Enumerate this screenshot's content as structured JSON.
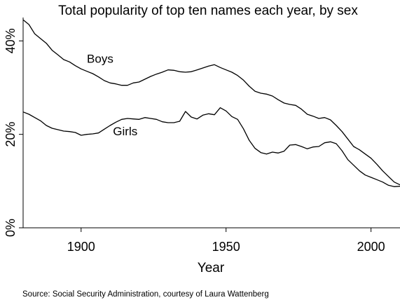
{
  "chart_data": {
    "type": "line",
    "title": "Total popularity of top ten names each year, by sex",
    "xlabel": "Year",
    "ylabel": "",
    "xlim": [
      1880,
      2010
    ],
    "ylim": [
      0,
      45
    ],
    "x_ticks": [
      1900,
      1950,
      2000
    ],
    "y_ticks": [
      0,
      20,
      40
    ],
    "y_tick_labels": [
      "0%",
      "20%",
      "40%"
    ],
    "grid": false,
    "legend": "none",
    "source": "Source:  Social Security Administration, courtesy of Laura Wattenberg",
    "series": [
      {
        "name": "Boys",
        "color": "#000000",
        "x": [
          1880,
          1882,
          1884,
          1886,
          1888,
          1890,
          1892,
          1894,
          1896,
          1898,
          1900,
          1902,
          1904,
          1906,
          1908,
          1910,
          1912,
          1914,
          1916,
          1918,
          1920,
          1922,
          1924,
          1926,
          1928,
          1930,
          1932,
          1934,
          1936,
          1938,
          1940,
          1942,
          1944,
          1946,
          1948,
          1950,
          1952,
          1954,
          1956,
          1958,
          1960,
          1962,
          1964,
          1966,
          1968,
          1970,
          1972,
          1974,
          1976,
          1978,
          1980,
          1982,
          1984,
          1986,
          1988,
          1990,
          1992,
          1994,
          1996,
          1998,
          2000,
          2002,
          2004,
          2006,
          2008,
          2010
        ],
        "values": [
          44.5,
          43.5,
          41.5,
          40.5,
          39.5,
          38.0,
          37.0,
          36.0,
          35.5,
          34.7,
          34.0,
          33.5,
          33.0,
          32.3,
          31.5,
          31.0,
          30.8,
          30.5,
          30.5,
          31.0,
          31.2,
          31.8,
          32.4,
          32.9,
          33.3,
          33.8,
          33.7,
          33.4,
          33.3,
          33.4,
          33.8,
          34.2,
          34.6,
          34.9,
          34.3,
          33.8,
          33.3,
          32.6,
          31.6,
          30.3,
          29.2,
          28.8,
          28.6,
          28.2,
          27.4,
          26.7,
          26.4,
          26.2,
          25.4,
          24.3,
          23.9,
          23.4,
          23.6,
          23.1,
          21.9,
          20.6,
          19.0,
          17.4,
          16.7,
          15.8,
          14.9,
          13.6,
          12.2,
          11.0,
          9.8,
          9.2
        ]
      },
      {
        "name": "Girls",
        "color": "#000000",
        "x": [
          1880,
          1882,
          1884,
          1886,
          1888,
          1890,
          1892,
          1894,
          1896,
          1898,
          1900,
          1902,
          1904,
          1906,
          1908,
          1910,
          1912,
          1914,
          1916,
          1918,
          1920,
          1922,
          1924,
          1926,
          1928,
          1930,
          1932,
          1934,
          1936,
          1938,
          1940,
          1942,
          1944,
          1946,
          1948,
          1950,
          1952,
          1954,
          1956,
          1958,
          1960,
          1962,
          1964,
          1966,
          1968,
          1970,
          1972,
          1974,
          1976,
          1978,
          1980,
          1982,
          1984,
          1986,
          1988,
          1990,
          1992,
          1994,
          1996,
          1998,
          2000,
          2002,
          2004,
          2006,
          2008,
          2010
        ],
        "values": [
          24.8,
          24.3,
          23.6,
          22.9,
          21.9,
          21.3,
          21.0,
          20.7,
          20.6,
          20.4,
          19.8,
          20.0,
          20.1,
          20.3,
          21.1,
          21.9,
          22.6,
          23.2,
          23.4,
          23.3,
          23.2,
          23.6,
          23.4,
          23.2,
          22.7,
          22.5,
          22.5,
          22.8,
          24.9,
          23.7,
          23.3,
          24.1,
          24.4,
          24.2,
          25.7,
          25.0,
          23.8,
          23.2,
          21.2,
          18.7,
          17.0,
          16.1,
          15.8,
          16.2,
          16.0,
          16.4,
          17.7,
          17.8,
          17.4,
          16.9,
          17.3,
          17.4,
          18.2,
          18.4,
          18.0,
          16.5,
          14.6,
          13.4,
          12.2,
          11.3,
          10.8,
          10.3,
          9.8,
          9.1,
          8.8,
          8.9
        ]
      }
    ],
    "annotations": [
      {
        "text": "Boys",
        "x": 1902,
        "y": 35.3
      },
      {
        "text": "Girls",
        "x": 1911,
        "y": 19.8
      }
    ]
  }
}
